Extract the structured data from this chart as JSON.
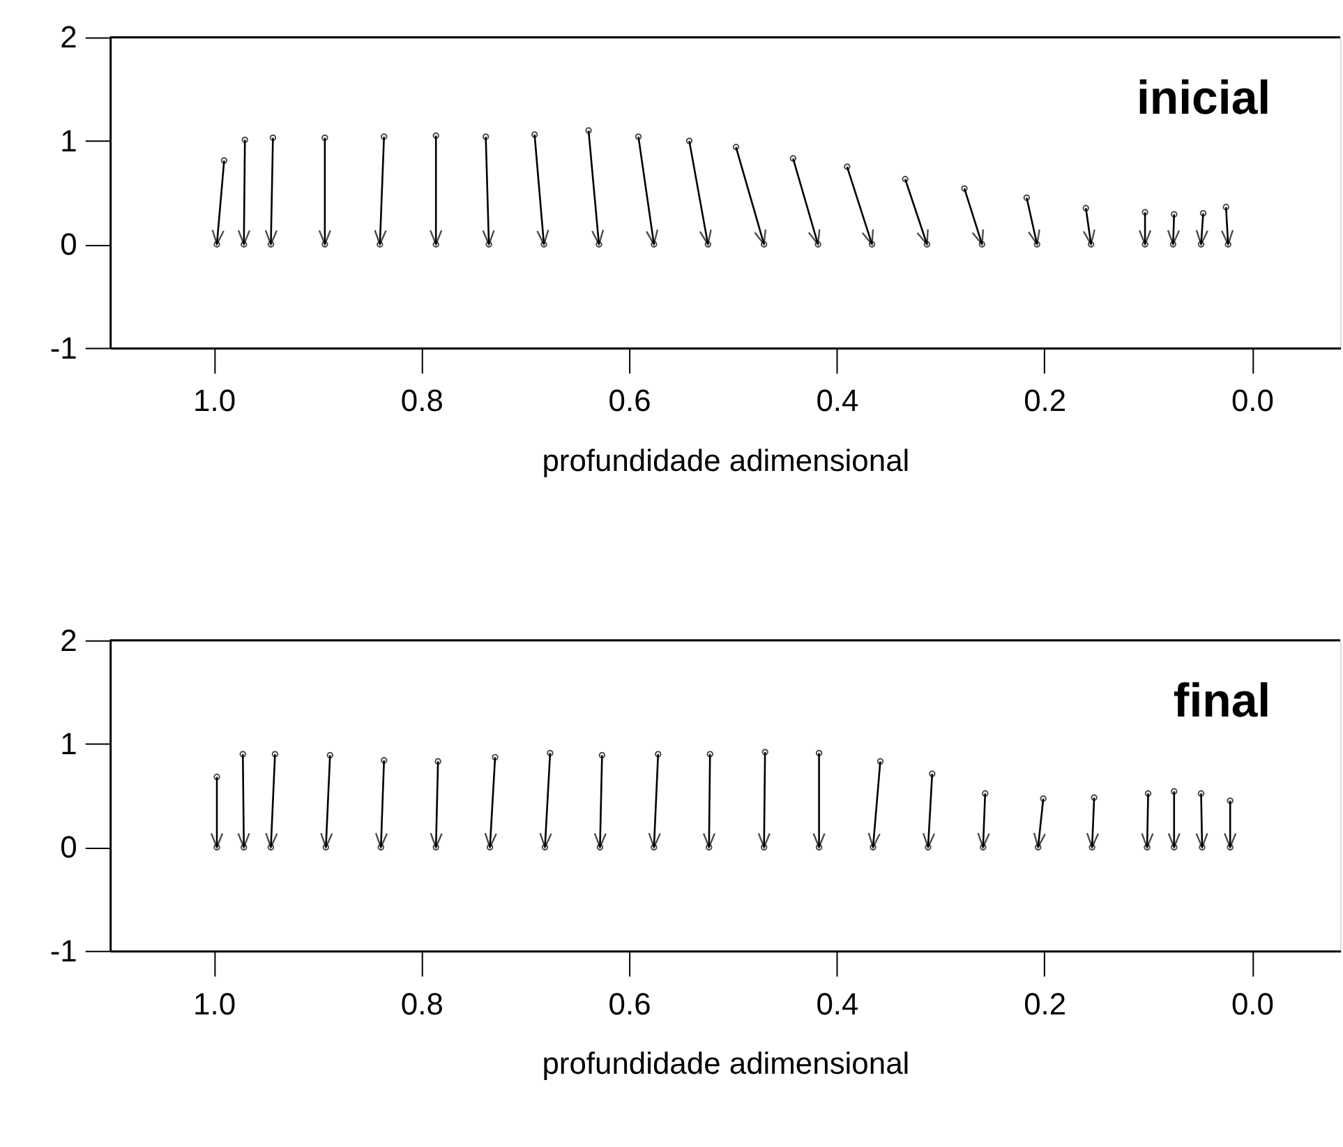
{
  "chart_data": [
    {
      "type": "line",
      "annotations": [
        "inicial"
      ],
      "xlabel": "profundidade adimensional",
      "marker": "circle",
      "line_style": "solid",
      "grid": false,
      "xlim": [
        1.1,
        -0.085
      ],
      "ylim": [
        -1,
        2
      ],
      "xticks": [
        {
          "value": 1.0,
          "label": "1.0"
        },
        {
          "value": 0.8,
          "label": "0.8"
        },
        {
          "value": 0.6,
          "label": "0.6"
        },
        {
          "value": 0.4,
          "label": "0.4"
        },
        {
          "value": 0.2,
          "label": "0.2"
        },
        {
          "value": 0.0,
          "label": "0.0"
        }
      ],
      "yticks": [
        -1,
        0,
        1,
        2
      ],
      "series": [
        {
          "color": "#000000",
          "x": [
            0.99,
            0.997
          ],
          "values": [
            0.81,
            0
          ]
        },
        {
          "color": "#000000",
          "x": [
            0.97,
            0.971
          ],
          "values": [
            1.01,
            0
          ]
        },
        {
          "color": "#000000",
          "x": [
            0.943,
            0.945
          ],
          "values": [
            1.03,
            0
          ]
        },
        {
          "color": "#000000",
          "x": [
            0.893,
            0.893
          ],
          "values": [
            1.03,
            0
          ]
        },
        {
          "color": "#000000",
          "x": [
            0.836,
            0.84
          ],
          "values": [
            1.04,
            0
          ]
        },
        {
          "color": "#000000",
          "x": [
            0.786,
            0.786
          ],
          "values": [
            1.05,
            0
          ]
        },
        {
          "color": "#000000",
          "x": [
            0.738,
            0.735
          ],
          "values": [
            1.04,
            0
          ]
        },
        {
          "color": "#000000",
          "x": [
            0.691,
            0.682
          ],
          "values": [
            1.06,
            0
          ]
        },
        {
          "color": "#000000",
          "x": [
            0.639,
            0.629
          ],
          "values": [
            1.1,
            0
          ]
        },
        {
          "color": "#000000",
          "x": [
            0.591,
            0.576
          ],
          "values": [
            1.04,
            0
          ]
        },
        {
          "color": "#000000",
          "x": [
            0.542,
            0.524
          ],
          "values": [
            1.0,
            0
          ]
        },
        {
          "color": "#000000",
          "x": [
            0.497,
            0.47
          ],
          "values": [
            0.94,
            0
          ]
        },
        {
          "color": "#000000",
          "x": [
            0.442,
            0.418
          ],
          "values": [
            0.83,
            0
          ]
        },
        {
          "color": "#000000",
          "x": [
            0.39,
            0.366
          ],
          "values": [
            0.75,
            0
          ]
        },
        {
          "color": "#000000",
          "x": [
            0.334,
            0.313
          ],
          "values": [
            0.63,
            0
          ]
        },
        {
          "color": "#000000",
          "x": [
            0.277,
            0.26
          ],
          "values": [
            0.54,
            0
          ]
        },
        {
          "color": "#000000",
          "x": [
            0.217,
            0.207
          ],
          "values": [
            0.45,
            0
          ]
        },
        {
          "color": "#000000",
          "x": [
            0.16,
            0.155
          ],
          "values": [
            0.35,
            0
          ]
        },
        {
          "color": "#000000",
          "x": [
            0.103,
            0.103
          ],
          "values": [
            0.31,
            0
          ]
        },
        {
          "color": "#000000",
          "x": [
            0.075,
            0.076
          ],
          "values": [
            0.29,
            0
          ]
        },
        {
          "color": "#000000",
          "x": [
            0.047,
            0.049
          ],
          "values": [
            0.3,
            0
          ]
        },
        {
          "color": "#000000",
          "x": [
            0.025,
            0.023
          ],
          "values": [
            0.36,
            0
          ]
        }
      ]
    },
    {
      "type": "line",
      "annotations": [
        "final"
      ],
      "xlabel": "profundidade adimensional",
      "marker": "circle",
      "line_style": "solid",
      "grid": false,
      "xlim": [
        1.1,
        -0.085
      ],
      "ylim": [
        -1,
        2
      ],
      "xticks": [
        {
          "value": 1.0,
          "label": "1.0"
        },
        {
          "value": 0.8,
          "label": "0.8"
        },
        {
          "value": 0.6,
          "label": "0.6"
        },
        {
          "value": 0.4,
          "label": "0.4"
        },
        {
          "value": 0.2,
          "label": "0.2"
        },
        {
          "value": 0.0,
          "label": "0.0"
        }
      ],
      "yticks": [
        -1,
        0,
        1,
        2
      ],
      "series": [
        {
          "color": "#000000",
          "x": [
            0.997,
            0.997
          ],
          "values": [
            0.68,
            0
          ]
        },
        {
          "color": "#000000",
          "x": [
            0.972,
            0.971
          ],
          "values": [
            0.9,
            0
          ]
        },
        {
          "color": "#000000",
          "x": [
            0.941,
            0.945
          ],
          "values": [
            0.9,
            0
          ]
        },
        {
          "color": "#000000",
          "x": [
            0.888,
            0.892
          ],
          "values": [
            0.89,
            0
          ]
        },
        {
          "color": "#000000",
          "x": [
            0.836,
            0.839
          ],
          "values": [
            0.84,
            0
          ]
        },
        {
          "color": "#000000",
          "x": [
            0.784,
            0.786
          ],
          "values": [
            0.83,
            0
          ]
        },
        {
          "color": "#000000",
          "x": [
            0.729,
            0.734
          ],
          "values": [
            0.87,
            0
          ]
        },
        {
          "color": "#000000",
          "x": [
            0.676,
            0.681
          ],
          "values": [
            0.91,
            0
          ]
        },
        {
          "color": "#000000",
          "x": [
            0.626,
            0.628
          ],
          "values": [
            0.89,
            0
          ]
        },
        {
          "color": "#000000",
          "x": [
            0.572,
            0.576
          ],
          "values": [
            0.9,
            0
          ]
        },
        {
          "color": "#000000",
          "x": [
            0.522,
            0.523
          ],
          "values": [
            0.9,
            0
          ]
        },
        {
          "color": "#000000",
          "x": [
            0.469,
            0.47
          ],
          "values": [
            0.92,
            0
          ]
        },
        {
          "color": "#000000",
          "x": [
            0.417,
            0.417
          ],
          "values": [
            0.91,
            0
          ]
        },
        {
          "color": "#000000",
          "x": [
            0.358,
            0.365
          ],
          "values": [
            0.83,
            0
          ]
        },
        {
          "color": "#000000",
          "x": [
            0.308,
            0.312
          ],
          "values": [
            0.71,
            0
          ]
        },
        {
          "color": "#000000",
          "x": [
            0.257,
            0.259
          ],
          "values": [
            0.52,
            0
          ]
        },
        {
          "color": "#000000",
          "x": [
            0.201,
            0.206
          ],
          "values": [
            0.47,
            0
          ]
        },
        {
          "color": "#000000",
          "x": [
            0.152,
            0.154
          ],
          "values": [
            0.48,
            0
          ]
        },
        {
          "color": "#000000",
          "x": [
            0.1,
            0.101
          ],
          "values": [
            0.52,
            0
          ]
        },
        {
          "color": "#000000",
          "x": [
            0.075,
            0.075
          ],
          "values": [
            0.54,
            0
          ]
        },
        {
          "color": "#000000",
          "x": [
            0.049,
            0.048
          ],
          "values": [
            0.52,
            0
          ]
        },
        {
          "color": "#000000",
          "x": [
            0.021,
            0.021
          ],
          "values": [
            0.45,
            0
          ]
        }
      ]
    }
  ]
}
